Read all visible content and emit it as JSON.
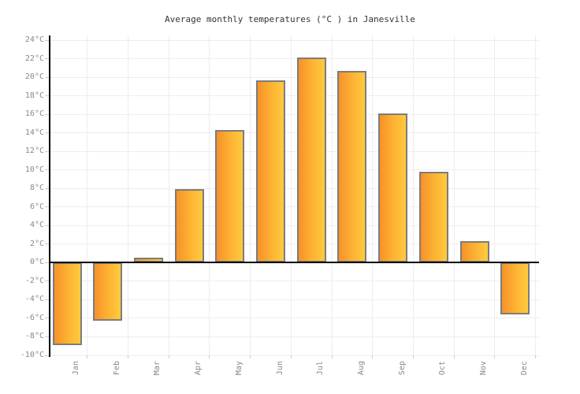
{
  "title": "Average monthly temperatures (°C ) in Janesville",
  "chart_data": {
    "type": "bar",
    "title": "Average monthly temperatures (°C ) in Janesville",
    "categories": [
      "Jan",
      "Feb",
      "Mar",
      "Apr",
      "May",
      "Jun",
      "Jul",
      "Aug",
      "Sep",
      "Oct",
      "Nov",
      "Dec"
    ],
    "values": [
      -8.9,
      -6.3,
      0.5,
      7.9,
      14.3,
      19.7,
      22.1,
      20.7,
      16.1,
      9.8,
      2.3,
      -5.6
    ],
    "xlabel": "",
    "ylabel": "",
    "ylim": [
      -10,
      24
    ],
    "ytick_step": 2,
    "ytick_suffix": "°C",
    "grid": true,
    "legend": "none",
    "colors": {
      "bar_gradient_left": "#f7912a",
      "bar_gradient_right": "#feca3e",
      "bar_border": "#7c7c7c",
      "zero_line": "#000000",
      "axis_line": "#000000",
      "gridline": "#ededed",
      "tick": "#cccccc",
      "axis_label": "#888888",
      "title_text": "#333333",
      "background": "#ffffff"
    }
  }
}
